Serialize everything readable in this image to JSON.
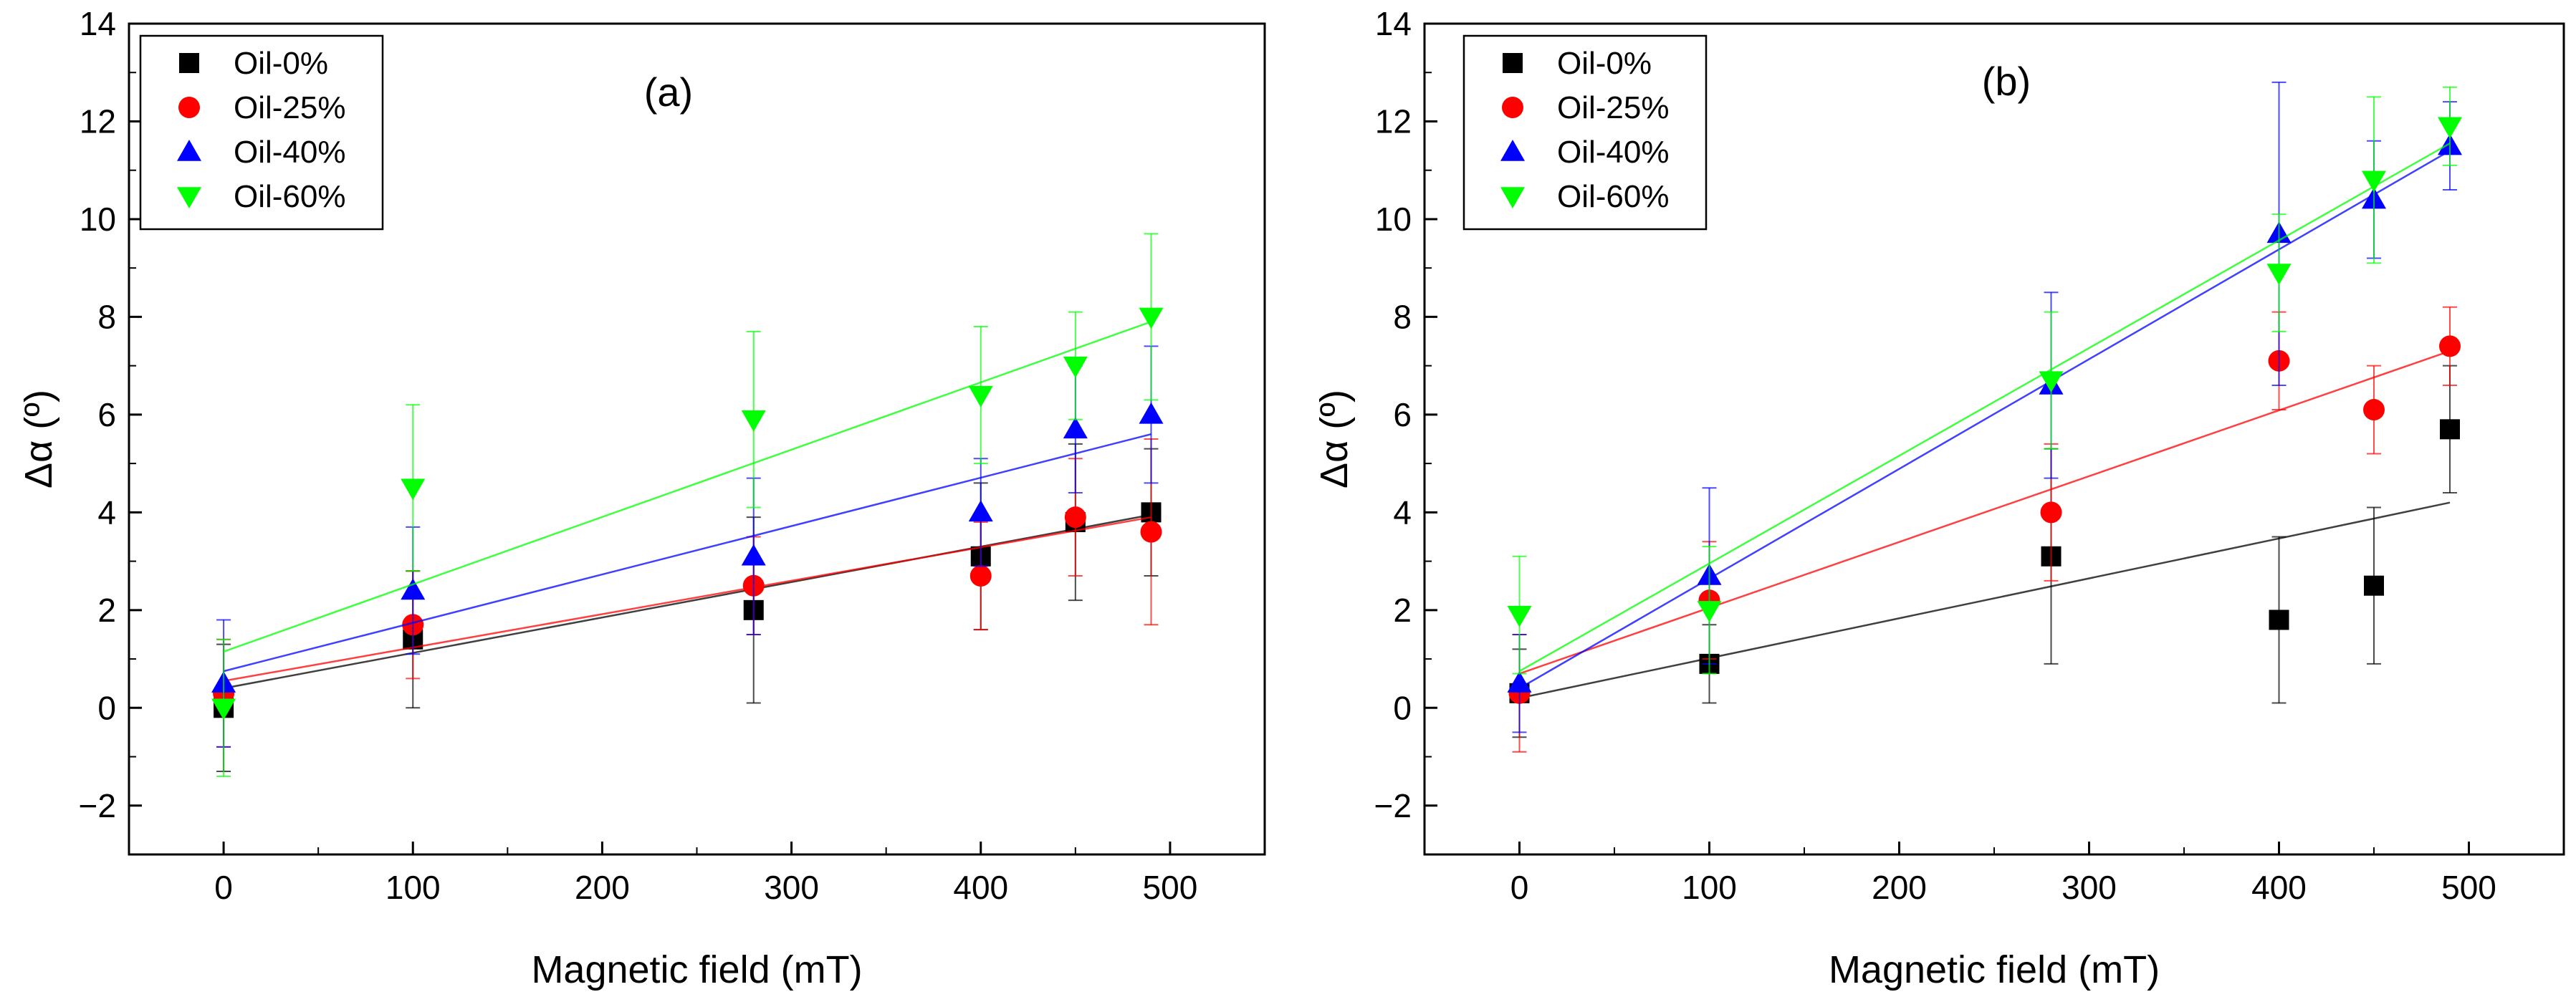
{
  "chart_data": [
    {
      "type": "scatter",
      "panel_label": "(a)",
      "xlabel": "Magnetic field (mT)",
      "ylabel": "Δα (º)",
      "xlim": [
        -50,
        550
      ],
      "ylim": [
        -3,
        14
      ],
      "xticks": [
        0,
        100,
        200,
        300,
        400,
        500
      ],
      "xtick_labels": [
        "0",
        "100",
        "200",
        "300",
        "400",
        "500"
      ],
      "yticks": [
        -2,
        0,
        2,
        4,
        6,
        8,
        10,
        12,
        14
      ],
      "ytick_labels": [
        "−2",
        "0",
        "2",
        "4",
        "6",
        "8",
        "10",
        "12",
        "14"
      ],
      "grid": false,
      "legend_position": "top-left",
      "series": [
        {
          "name": "Oil-0%",
          "color": "#000000",
          "marker": "square",
          "x": [
            0,
            100,
            280,
            400,
            450,
            490
          ],
          "y": [
            0.0,
            1.4,
            2.0,
            3.1,
            3.8,
            4.0
          ],
          "err": [
            1.3,
            1.4,
            1.9,
            1.5,
            1.6,
            1.3
          ],
          "fit": [
            0.4,
            3.95
          ]
        },
        {
          "name": "Oil-25%",
          "color": "#ff0000",
          "marker": "circle",
          "x": [
            0,
            100,
            280,
            400,
            450,
            490
          ],
          "y": [
            0.3,
            1.7,
            2.5,
            2.7,
            3.9,
            3.6
          ],
          "err": [
            1.1,
            1.1,
            1.0,
            1.1,
            1.2,
            1.9
          ],
          "fit": [
            0.55,
            3.9
          ]
        },
        {
          "name": "Oil-40%",
          "color": "#0000ff",
          "marker": "triangle-up",
          "x": [
            0,
            100,
            280,
            400,
            450,
            490
          ],
          "y": [
            0.5,
            2.4,
            3.1,
            4.0,
            5.7,
            6.0
          ],
          "err": [
            1.3,
            1.3,
            1.6,
            1.1,
            1.3,
            1.4
          ],
          "fit": [
            0.75,
            5.6
          ]
        },
        {
          "name": "Oil-60%",
          "color": "#00ff00",
          "marker": "triangle-down",
          "x": [
            0,
            100,
            280,
            400,
            450,
            490
          ],
          "y": [
            0.0,
            4.5,
            5.9,
            6.4,
            7.0,
            8.0
          ],
          "err": [
            1.4,
            1.7,
            1.8,
            1.4,
            1.1,
            1.7
          ],
          "fit": [
            1.15,
            7.9
          ]
        }
      ]
    },
    {
      "type": "scatter",
      "panel_label": "(b)",
      "xlabel": "Magnetic field (mT)",
      "ylabel": "Δα (º)",
      "xlim": [
        -50,
        550
      ],
      "ylim": [
        -3,
        14
      ],
      "xticks": [
        0,
        100,
        200,
        300,
        400,
        500
      ],
      "xtick_labels": [
        "0",
        "100",
        "200",
        "300",
        "400",
        "500"
      ],
      "yticks": [
        -2,
        0,
        2,
        4,
        6,
        8,
        10,
        12,
        14
      ],
      "ytick_labels": [
        "−2",
        "0",
        "2",
        "4",
        "6",
        "8",
        "10",
        "12",
        "14"
      ],
      "grid": false,
      "legend_position": "top-left",
      "series": [
        {
          "name": "Oil-0%",
          "color": "#000000",
          "marker": "square",
          "x": [
            0,
            100,
            280,
            400,
            450,
            490
          ],
          "y": [
            0.3,
            0.9,
            3.1,
            1.8,
            2.5,
            5.7
          ],
          "err": [
            0.9,
            0.8,
            2.2,
            1.7,
            1.6,
            1.3
          ],
          "fit": [
            0.2,
            4.2
          ]
        },
        {
          "name": "Oil-25%",
          "color": "#ff0000",
          "marker": "circle",
          "x": [
            0,
            100,
            280,
            400,
            450,
            490
          ],
          "y": [
            0.3,
            2.2,
            4.0,
            7.1,
            6.1,
            7.4
          ],
          "err": [
            1.2,
            1.2,
            1.4,
            1.0,
            0.9,
            0.8
          ],
          "fit": [
            0.7,
            7.3
          ]
        },
        {
          "name": "Oil-40%",
          "color": "#0000ff",
          "marker": "triangle-up",
          "x": [
            0,
            100,
            280,
            400,
            450,
            490
          ],
          "y": [
            0.5,
            2.7,
            6.6,
            9.7,
            10.4,
            11.5
          ],
          "err": [
            1.0,
            1.8,
            1.9,
            3.1,
            1.2,
            0.9
          ],
          "fit": [
            0.4,
            11.4
          ]
        },
        {
          "name": "Oil-60%",
          "color": "#00ff00",
          "marker": "triangle-down",
          "x": [
            0,
            100,
            280,
            400,
            450,
            490
          ],
          "y": [
            1.9,
            2.0,
            6.7,
            8.9,
            10.8,
            11.9
          ],
          "err": [
            1.2,
            1.3,
            1.4,
            1.2,
            1.7,
            0.8
          ],
          "fit": [
            0.75,
            11.55
          ]
        }
      ]
    }
  ]
}
